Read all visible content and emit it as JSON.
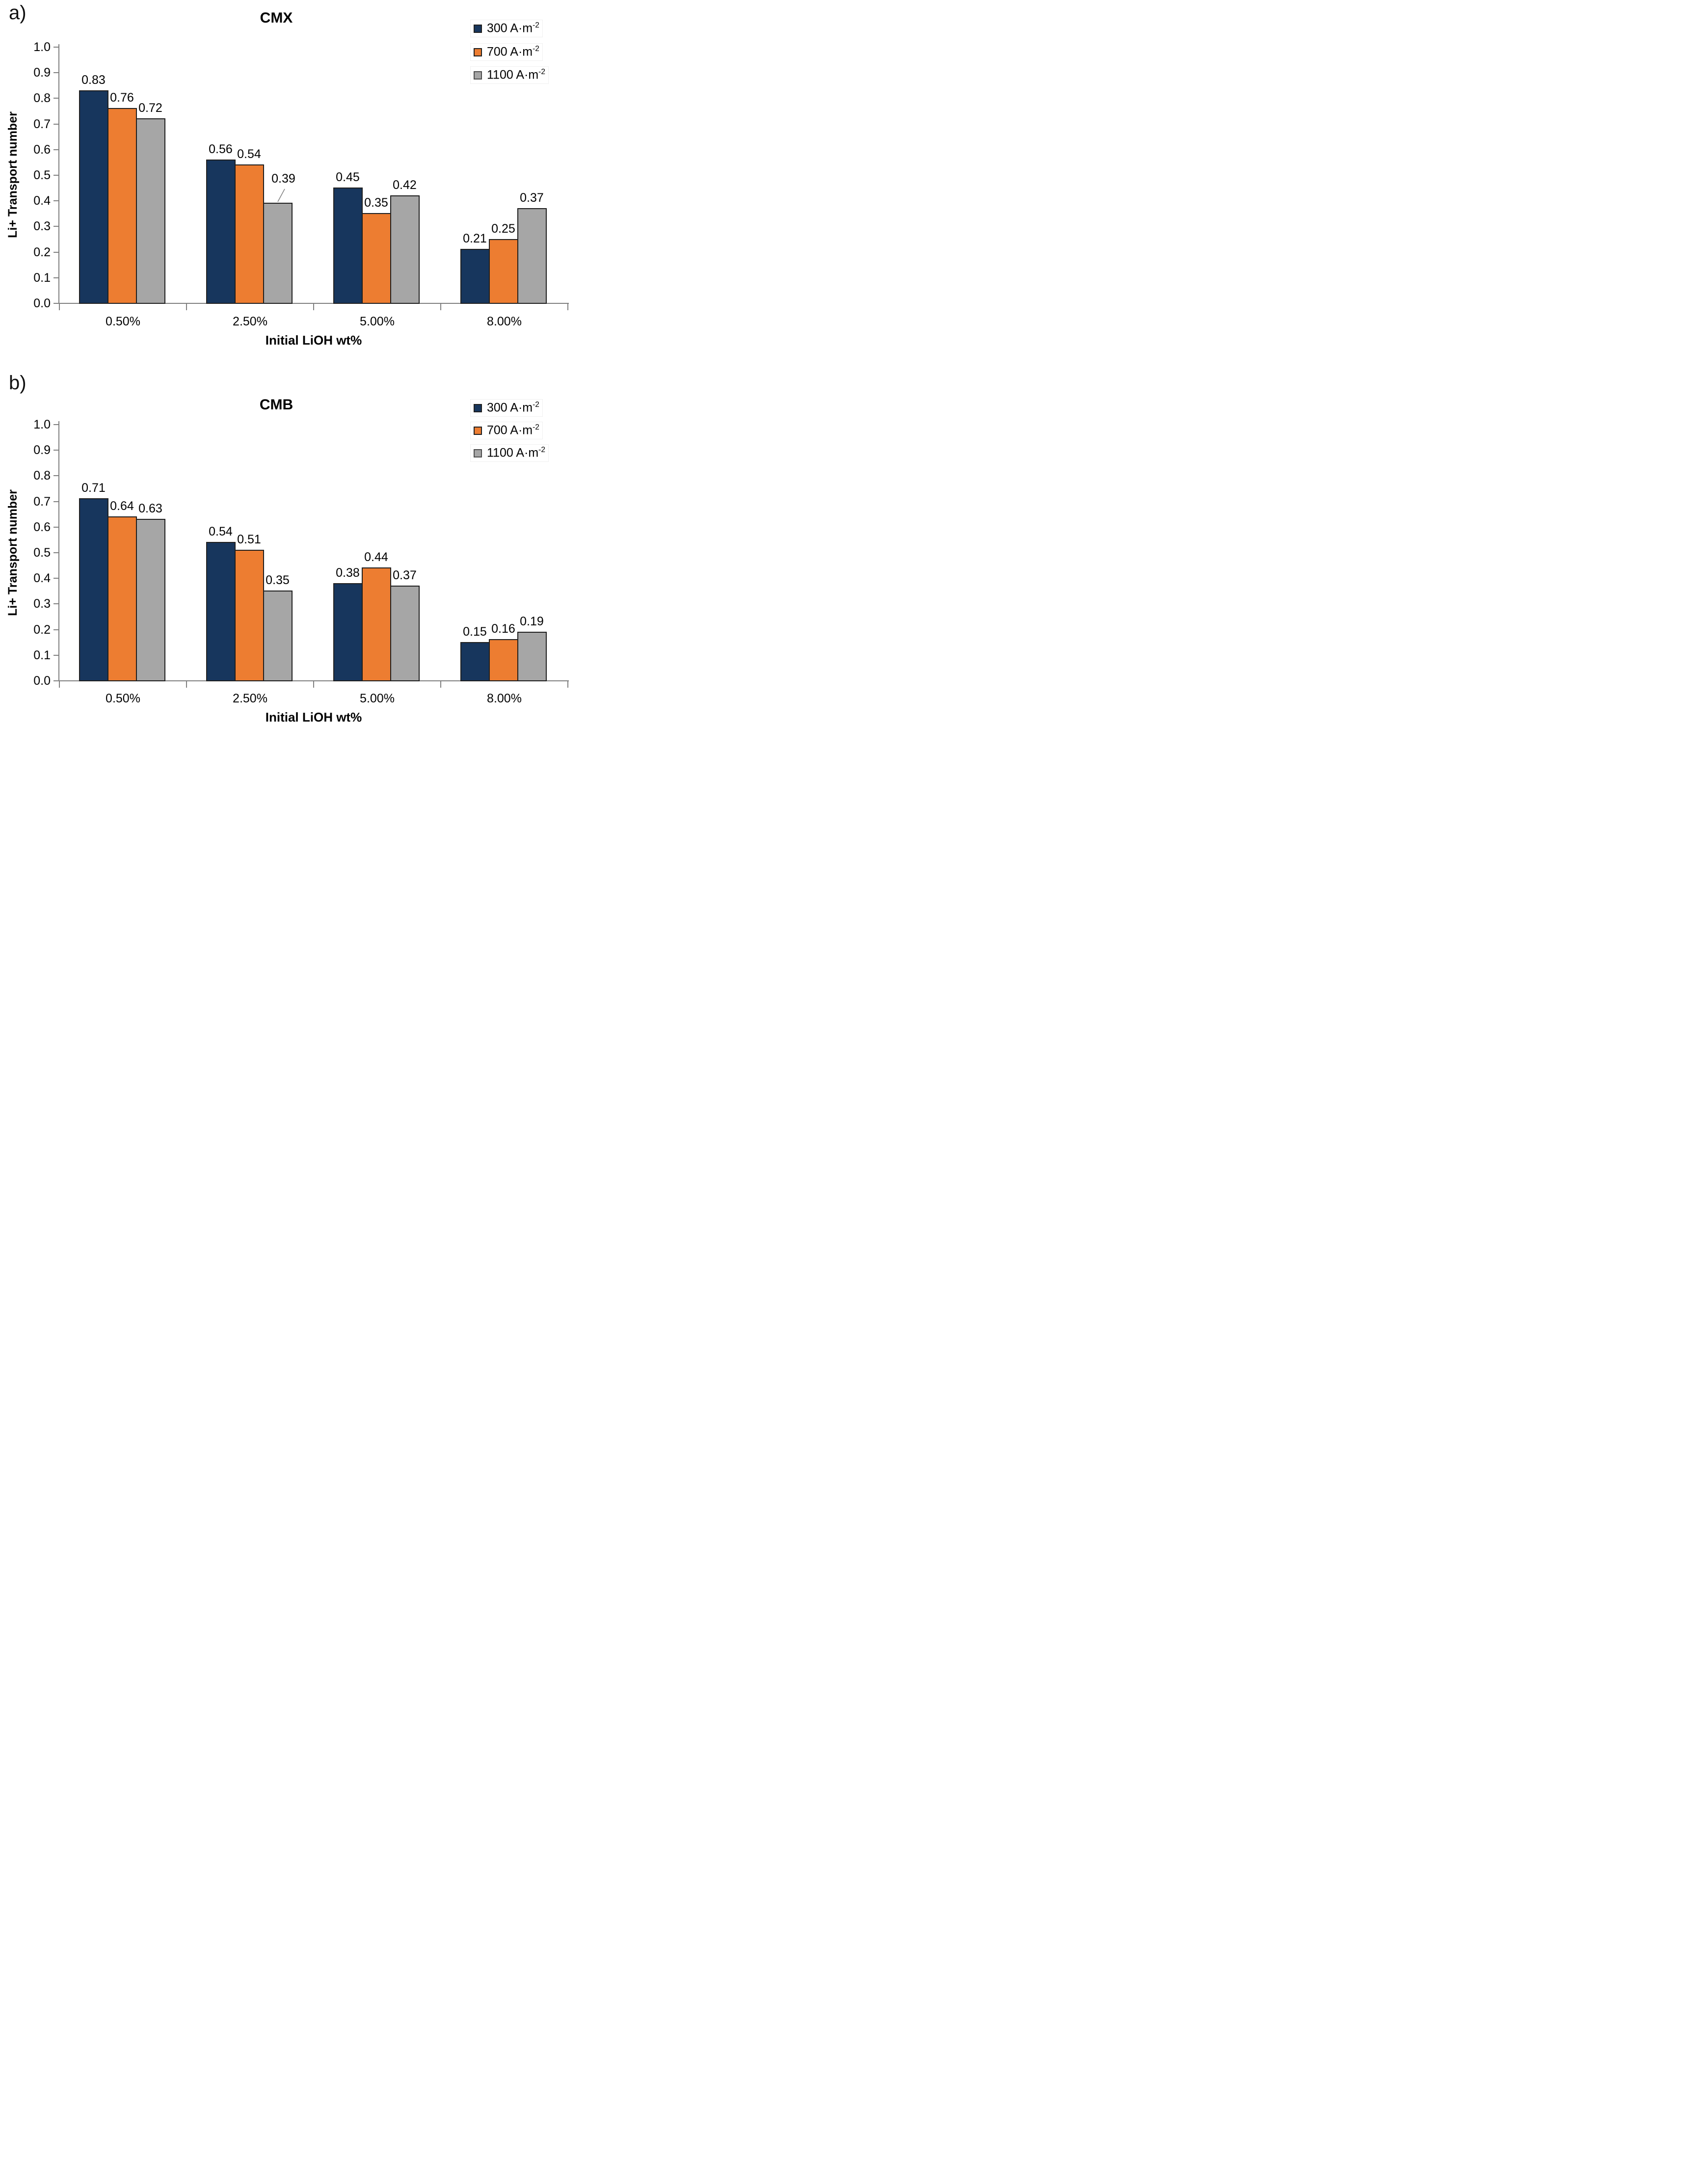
{
  "chart_data": [
    {
      "type": "bar",
      "panel_label": "a)",
      "title": "CMX",
      "xlabel": "Initial LiOH wt%",
      "ylabel": "Li+ Transport number",
      "categories": [
        "0.50%",
        "2.50%",
        "5.00%",
        "8.00%"
      ],
      "yticks": [
        "1.0",
        "0.9",
        "0.8",
        "0.7",
        "0.6",
        "0.5",
        "0.4",
        "0.3",
        "0.2",
        "0.1",
        "0.0"
      ],
      "ylim": [
        0.0,
        1.0
      ],
      "grid": false,
      "legend_position": "top-right",
      "series": [
        {
          "name": "300 A·m⁻²",
          "legend_base": "300 A·m",
          "legend_sup": "-2",
          "color": "#17365D",
          "values": [
            0.83,
            0.56,
            0.45,
            0.21
          ],
          "labels": [
            "0.83",
            "0.56",
            "0.45",
            "0.21"
          ]
        },
        {
          "name": "700 A·m⁻²",
          "legend_base": "700 A·m",
          "legend_sup": "-2",
          "color": "#ED7D31",
          "values": [
            0.76,
            0.54,
            0.35,
            0.25
          ],
          "labels": [
            "0.76",
            "0.54",
            "0.35",
            "0.25"
          ]
        },
        {
          "name": "1100 A·m⁻²",
          "legend_base": "1100 A·m",
          "legend_sup": "-2",
          "color": "#A6A6A6",
          "values": [
            0.72,
            0.39,
            0.42,
            0.37
          ],
          "labels": [
            "0.72",
            "0.39",
            "0.42",
            "0.37"
          ]
        }
      ],
      "label_leaders": [
        {
          "group": 1,
          "series": 2
        }
      ]
    },
    {
      "type": "bar",
      "panel_label": "b)",
      "title": "CMB",
      "xlabel": "Initial LiOH wt%",
      "ylabel": "Li+ Transport number",
      "categories": [
        "0.50%",
        "2.50%",
        "5.00%",
        "8.00%"
      ],
      "yticks": [
        "1.0",
        "0.9",
        "0.8",
        "0.7",
        "0.6",
        "0.5",
        "0.4",
        "0.3",
        "0.2",
        "0.1",
        "0.0"
      ],
      "ylim": [
        0.0,
        1.0
      ],
      "grid": false,
      "legend_position": "top-right",
      "series": [
        {
          "name": "300 A·m⁻²",
          "legend_base": "300 A·m",
          "legend_sup": "-2",
          "color": "#17365D",
          "values": [
            0.71,
            0.54,
            0.38,
            0.15
          ],
          "labels": [
            "0.71",
            "0.54",
            "0.38",
            "0.15"
          ]
        },
        {
          "name": "700 A·m⁻²",
          "legend_base": "700 A·m",
          "legend_sup": "-2",
          "color": "#ED7D31",
          "values": [
            0.64,
            0.51,
            0.44,
            0.16
          ],
          "labels": [
            "0.64",
            "0.51",
            "0.44",
            "0.16"
          ]
        },
        {
          "name": "1100 A·m⁻²",
          "legend_base": "1100 A·m",
          "legend_sup": "-2",
          "color": "#A6A6A6",
          "values": [
            0.63,
            0.35,
            0.37,
            0.19
          ],
          "labels": [
            "0.63",
            "0.35",
            "0.37",
            "0.19"
          ]
        }
      ],
      "label_leaders": []
    }
  ],
  "colors": {
    "series_navy": "#17365D",
    "series_orange": "#ED7D31",
    "series_gray": "#A6A6A6",
    "bar_border": "#1F1F1F",
    "axis": "#808080",
    "text": "#000000",
    "background": "#FFFFFF"
  }
}
